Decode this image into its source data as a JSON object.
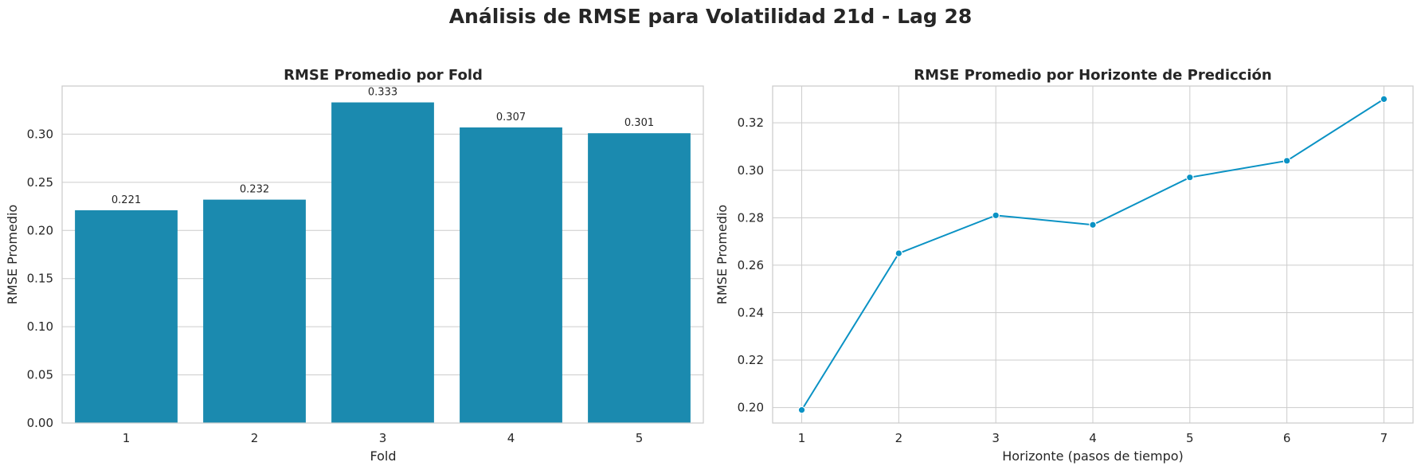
{
  "suptitle": "Análisis de RMSE para Volatilidad 21d - Lag 28",
  "colors": {
    "bar": "#1b8aaf",
    "line": "#0a92c4",
    "grid": "#cccccc",
    "axis": "#cccccc"
  },
  "chart_data": [
    {
      "type": "bar",
      "title": "RMSE Promedio por Fold",
      "xlabel": "Fold",
      "ylabel": "RMSE Promedio",
      "categories": [
        "1",
        "2",
        "3",
        "4",
        "5"
      ],
      "values": [
        0.221,
        0.232,
        0.333,
        0.307,
        0.301
      ],
      "data_labels": [
        "0.221",
        "0.232",
        "0.333",
        "0.307",
        "0.301"
      ],
      "ylim": [
        0,
        0.35
      ],
      "yticks": [
        0.0,
        0.05,
        0.1,
        0.15,
        0.2,
        0.25,
        0.3
      ],
      "ytick_labels": [
        "0.00",
        "0.05",
        "0.10",
        "0.15",
        "0.20",
        "0.25",
        "0.30"
      ],
      "grid": "horizontal"
    },
    {
      "type": "line",
      "title": "RMSE Promedio por Horizonte de Predicción",
      "xlabel": "Horizonte (pasos de tiempo)",
      "ylabel": "RMSE Promedio",
      "x": [
        1,
        2,
        3,
        4,
        5,
        6,
        7
      ],
      "values": [
        0.199,
        0.265,
        0.281,
        0.277,
        0.297,
        0.304,
        0.33
      ],
      "xlim": [
        0.7,
        7.3
      ],
      "ylim": [
        0.1935,
        0.3355
      ],
      "xticks": [
        1,
        2,
        3,
        4,
        5,
        6,
        7
      ],
      "yticks": [
        0.2,
        0.22,
        0.24,
        0.26,
        0.28,
        0.3,
        0.32
      ],
      "ytick_labels": [
        "0.20",
        "0.22",
        "0.24",
        "0.26",
        "0.28",
        "0.30",
        "0.32"
      ],
      "marker": "circle",
      "grid": "both"
    }
  ]
}
